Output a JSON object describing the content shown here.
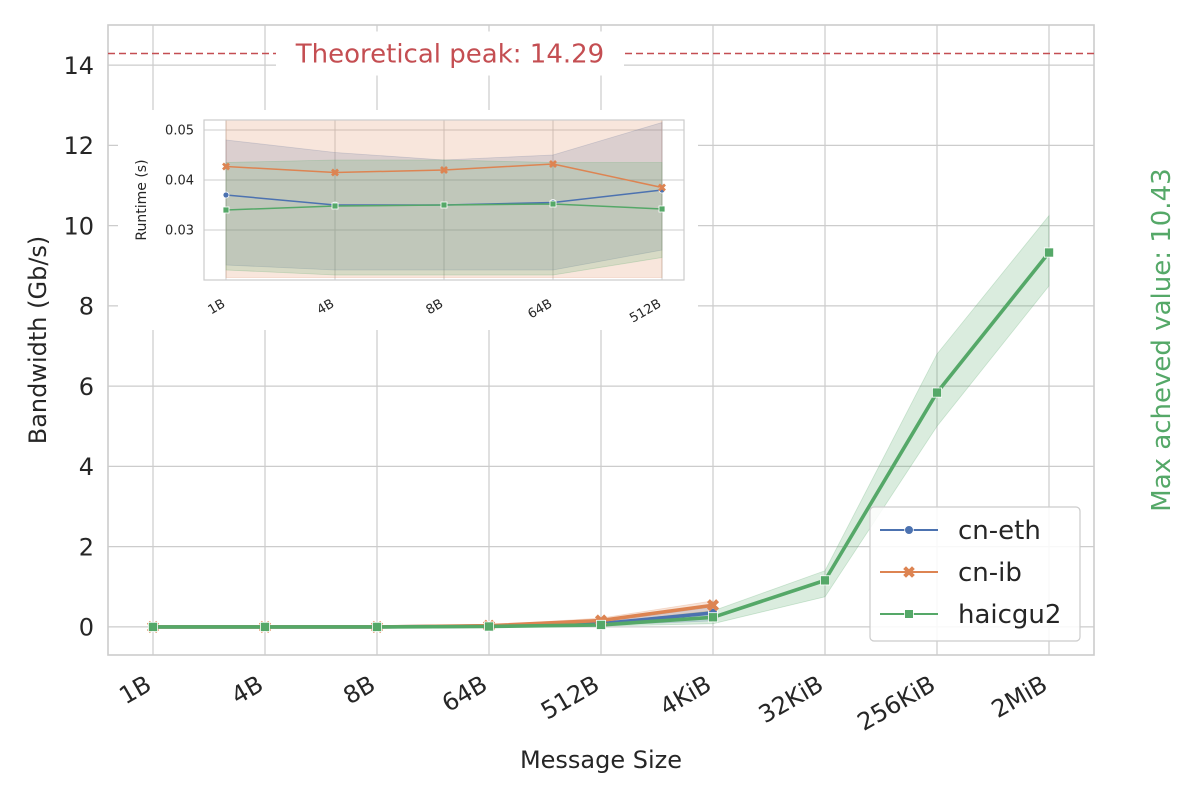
{
  "chart_data": [
    {
      "type": "line",
      "xlabel": "Message Size",
      "ylabel": "Bandwidth (Gb/s)",
      "categories": [
        "1B",
        "4B",
        "8B",
        "64B",
        "512B",
        "4KiB",
        "32KiB",
        "256KiB",
        "2MiB"
      ],
      "ylim": [
        -0.7,
        15.0
      ],
      "yticks": [
        0,
        2,
        4,
        6,
        8,
        10,
        12,
        14
      ],
      "grid": true,
      "legend_position": "lower-right",
      "series": [
        {
          "name": "cn-eth",
          "color": "#4c72b0",
          "marker": "circle",
          "values": [
            0.0,
            0.0,
            0.0,
            0.02,
            0.08,
            0.35,
            null,
            null,
            null
          ],
          "band_low": [
            0.0,
            0.0,
            0.0,
            0.01,
            0.04,
            0.15,
            null,
            null,
            null
          ],
          "band_high": [
            0.0,
            0.0,
            0.0,
            0.03,
            0.12,
            0.5,
            null,
            null,
            null
          ]
        },
        {
          "name": "cn-ib",
          "color": "#dd8452",
          "marker": "x",
          "values": [
            0.0,
            0.0,
            0.0,
            0.03,
            0.16,
            0.54,
            null,
            null,
            null
          ],
          "band_low": [
            0.0,
            0.0,
            0.0,
            0.02,
            0.1,
            0.4,
            null,
            null,
            null
          ],
          "band_high": [
            0.0,
            0.0,
            0.0,
            0.04,
            0.22,
            0.65,
            null,
            null,
            null
          ]
        },
        {
          "name": "haicgu2",
          "color": "#55a868",
          "marker": "square",
          "values": [
            0.0,
            0.0,
            0.0,
            0.01,
            0.05,
            0.24,
            1.16,
            5.84,
            9.33
          ],
          "band_low": [
            0.0,
            0.0,
            0.0,
            0.0,
            0.02,
            0.08,
            0.75,
            5.0,
            8.5
          ],
          "band_high": [
            0.0,
            0.0,
            0.0,
            0.02,
            0.1,
            0.4,
            1.4,
            6.8,
            10.25
          ]
        }
      ],
      "annotations": [
        {
          "text": "Theoretical peak: 14.29",
          "y": 14.29,
          "color": "#c44e52"
        },
        {
          "text": "Max acheved value: 10.43",
          "color": "#55a868"
        }
      ]
    },
    {
      "type": "line",
      "xlabel": "",
      "ylabel": "Runtime (s)",
      "categories": [
        "1B",
        "4B",
        "8B",
        "64B",
        "512B"
      ],
      "ylim": [
        0.02,
        0.052
      ],
      "yticks": [
        0.03,
        0.04,
        0.05
      ],
      "yticklabels": [
        "0.03",
        "0.04",
        "0.05"
      ],
      "grid": true,
      "series": [
        {
          "name": "cn-eth",
          "color": "#4c72b0",
          "marker": "circle",
          "values": [
            0.037,
            0.035,
            0.035,
            0.0355,
            0.038
          ],
          "band_low": [
            0.023,
            0.022,
            0.022,
            0.022,
            0.026
          ],
          "band_high": [
            0.048,
            0.0455,
            0.044,
            0.045,
            0.0515
          ]
        },
        {
          "name": "cn-ib",
          "color": "#dd8452",
          "marker": "x",
          "values": [
            0.0427,
            0.0415,
            0.042,
            0.0432,
            0.0385
          ],
          "band_low": [
            0.0205,
            0.0205,
            0.0205,
            0.0205,
            0.0205
          ],
          "band_high": [
            0.0525,
            0.0525,
            0.0525,
            0.0525,
            0.0525
          ]
        },
        {
          "name": "haicgu2",
          "color": "#55a868",
          "marker": "square",
          "values": [
            0.034,
            0.0348,
            0.035,
            0.0352,
            0.0342
          ],
          "band_low": [
            0.022,
            0.021,
            0.021,
            0.021,
            0.0245
          ],
          "band_high": [
            0.0435,
            0.044,
            0.044,
            0.0435,
            0.0435
          ]
        }
      ]
    }
  ]
}
